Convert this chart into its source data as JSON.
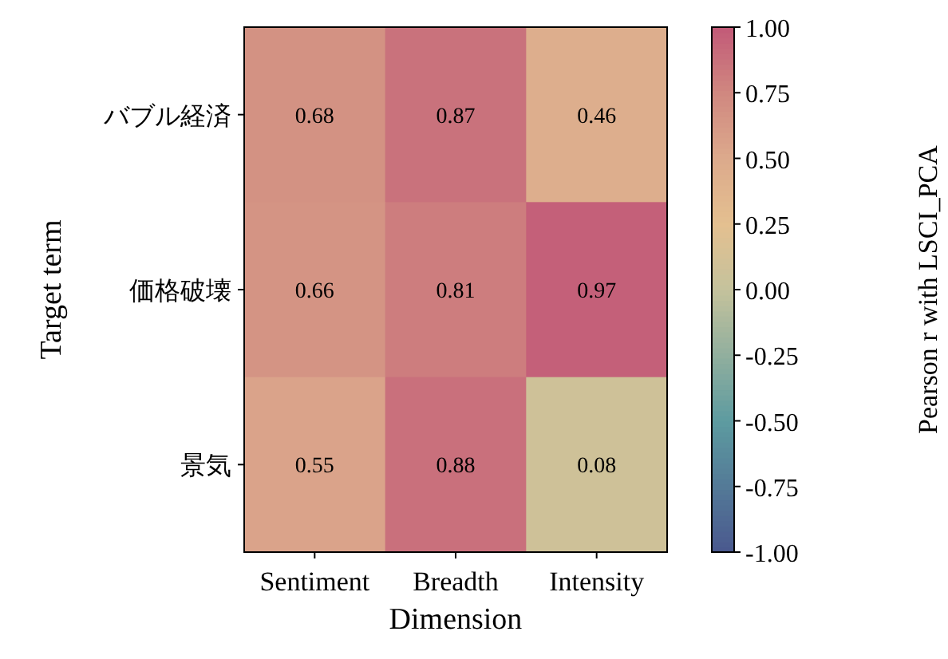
{
  "chart_data": {
    "type": "heatmap",
    "xlabel": "Dimension",
    "ylabel": "Target term",
    "clabel": "Pearson r with LSCI_PCA",
    "categories": [
      "Sentiment",
      "Breadth",
      "Intensity"
    ],
    "y_categories": [
      "バブル経済",
      "価格破壊",
      "景気"
    ],
    "cells": [
      [
        0.68,
        0.87,
        0.46
      ],
      [
        0.66,
        0.81,
        0.97
      ],
      [
        0.55,
        0.88,
        0.08
      ]
    ],
    "data_labels": true,
    "clim": [
      -1,
      1
    ],
    "cticks": [
      {
        "value": 1,
        "label": "1.00"
      },
      {
        "value": 0.75,
        "label": "0.75"
      },
      {
        "value": 0.5,
        "label": "0.50"
      },
      {
        "value": 0.25,
        "label": "0.25"
      },
      {
        "value": 0,
        "label": "0.00"
      },
      {
        "value": -0.25,
        "label": "-0.25"
      },
      {
        "value": -0.5,
        "label": "-0.50"
      },
      {
        "value": -0.75,
        "label": "-0.75"
      },
      {
        "value": -1,
        "label": "-1.00"
      }
    ]
  }
}
